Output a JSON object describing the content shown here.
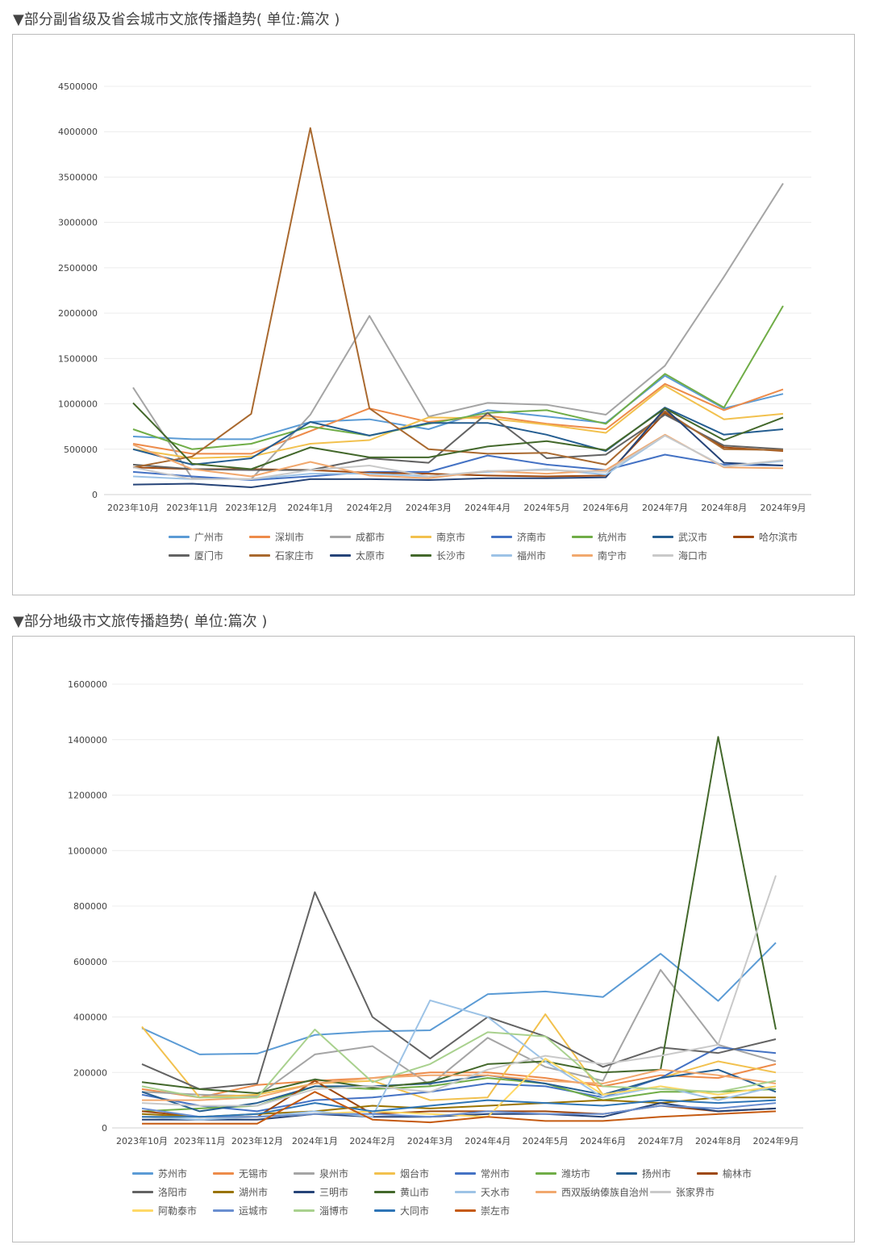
{
  "chart_data": [
    {
      "type": "line",
      "title": "▼部分副省级及省会城市文旅传播趋势( 单位:篇次 )",
      "categories": [
        "2023年10月",
        "2023年11月",
        "2023年12月",
        "2024年1月",
        "2024年2月",
        "2024年3月",
        "2024年4月",
        "2024年5月",
        "2024年6月",
        "2024年7月",
        "2024年8月",
        "2024年9月"
      ],
      "ylim": [
        0,
        4500000
      ],
      "yticks": [
        0,
        500000,
        1000000,
        1500000,
        2000000,
        2500000,
        3000000,
        3500000,
        4000000,
        4500000
      ],
      "grid": true,
      "legend": "bottom",
      "series": [
        {
          "name": "广州市",
          "color": "#5b9bd5",
          "values": [
            640000,
            610000,
            610000,
            800000,
            830000,
            720000,
            930000,
            860000,
            790000,
            1310000,
            950000,
            1110000
          ]
        },
        {
          "name": "深圳市",
          "color": "#ed8b4a",
          "values": [
            560000,
            450000,
            450000,
            700000,
            950000,
            800000,
            870000,
            780000,
            720000,
            1220000,
            930000,
            1160000
          ]
        },
        {
          "name": "成都市",
          "color": "#a5a5a5",
          "values": [
            1180000,
            180000,
            170000,
            880000,
            1970000,
            860000,
            1010000,
            990000,
            880000,
            1420000,
            2400000,
            3430000
          ]
        },
        {
          "name": "南京市",
          "color": "#f2c14e",
          "values": [
            500000,
            400000,
            420000,
            560000,
            600000,
            850000,
            840000,
            770000,
            680000,
            1200000,
            830000,
            890000
          ]
        },
        {
          "name": "济南市",
          "color": "#4472c4",
          "values": [
            250000,
            200000,
            160000,
            200000,
            250000,
            250000,
            430000,
            330000,
            270000,
            440000,
            330000,
            320000
          ]
        },
        {
          "name": "杭州市",
          "color": "#70ad47",
          "values": [
            720000,
            500000,
            560000,
            750000,
            650000,
            780000,
            900000,
            930000,
            780000,
            1330000,
            960000,
            2080000
          ]
        },
        {
          "name": "武汉市",
          "color": "#255e91",
          "values": [
            500000,
            330000,
            400000,
            800000,
            650000,
            790000,
            790000,
            660000,
            480000,
            960000,
            660000,
            720000
          ]
        },
        {
          "name": "哈尔滨市",
          "color": "#9e480e",
          "values": [
            300000,
            280000,
            280000,
            270000,
            240000,
            230000,
            210000,
            200000,
            210000,
            900000,
            520000,
            480000
          ]
        },
        {
          "name": "厦门市",
          "color": "#636363",
          "values": [
            330000,
            280000,
            270000,
            270000,
            400000,
            350000,
            900000,
            400000,
            440000,
            880000,
            540000,
            500000
          ]
        },
        {
          "name": "石家庄市",
          "color": "#a9692f",
          "values": [
            300000,
            420000,
            890000,
            4040000,
            950000,
            500000,
            450000,
            460000,
            330000,
            920000,
            500000,
            490000
          ]
        },
        {
          "name": "太原市",
          "color": "#264478",
          "values": [
            110000,
            120000,
            80000,
            170000,
            170000,
            160000,
            180000,
            180000,
            190000,
            950000,
            350000,
            320000
          ]
        },
        {
          "name": "长沙市",
          "color": "#43682b",
          "values": [
            1010000,
            340000,
            280000,
            520000,
            410000,
            410000,
            530000,
            590000,
            490000,
            950000,
            600000,
            850000
          ]
        },
        {
          "name": "福州市",
          "color": "#9dc3e6",
          "values": [
            200000,
            170000,
            170000,
            230000,
            230000,
            200000,
            250000,
            280000,
            220000,
            650000,
            310000,
            370000
          ]
        },
        {
          "name": "南宁市",
          "color": "#f1a86e",
          "values": [
            550000,
            280000,
            200000,
            360000,
            210000,
            180000,
            260000,
            230000,
            270000,
            660000,
            300000,
            290000
          ]
        },
        {
          "name": "海口市",
          "color": "#c9c9c9",
          "values": [
            300000,
            170000,
            170000,
            270000,
            320000,
            200000,
            260000,
            270000,
            250000,
            650000,
            310000,
            380000
          ]
        }
      ]
    },
    {
      "type": "line",
      "title": "▼部分地级市文旅传播趋势( 单位:篇次 )",
      "categories": [
        "2023年10月",
        "2023年11月",
        "2023年12月",
        "2024年1月",
        "2024年2月",
        "2024年3月",
        "2024年4月",
        "2024年5月",
        "2024年6月",
        "2024年7月",
        "2024年8月",
        "2024年9月"
      ],
      "ylim": [
        0,
        1600000
      ],
      "yticks": [
        0,
        200000,
        400000,
        600000,
        800000,
        1000000,
        1200000,
        1400000,
        1600000
      ],
      "grid": true,
      "legend": "bottom",
      "series": [
        {
          "name": "苏州市",
          "color": "#5b9bd5",
          "values": [
            360000,
            265000,
            268000,
            335000,
            348000,
            352000,
            482000,
            492000,
            472000,
            628000,
            458000,
            668000
          ]
        },
        {
          "name": "无锡市",
          "color": "#ed8b4a",
          "values": [
            140000,
            110000,
            155000,
            170000,
            180000,
            200000,
            200000,
            180000,
            150000,
            190000,
            180000,
            230000
          ]
        },
        {
          "name": "泉州市",
          "color": "#a5a5a5",
          "values": [
            130000,
            120000,
            115000,
            265000,
            295000,
            155000,
            325000,
            220000,
            170000,
            570000,
            300000,
            240000
          ]
        },
        {
          "name": "烟台市",
          "color": "#f2c14e",
          "values": [
            365000,
            110000,
            120000,
            160000,
            170000,
            100000,
            110000,
            410000,
            120000,
            180000,
            240000,
            200000
          ]
        },
        {
          "name": "常州市",
          "color": "#4472c4",
          "values": [
            120000,
            80000,
            60000,
            100000,
            110000,
            130000,
            160000,
            150000,
            110000,
            180000,
            290000,
            270000
          ]
        },
        {
          "name": "潍坊市",
          "color": "#70ad47",
          "values": [
            60000,
            70000,
            80000,
            150000,
            140000,
            150000,
            180000,
            160000,
            100000,
            130000,
            130000,
            140000
          ]
        },
        {
          "name": "扬州市",
          "color": "#255e91",
          "values": [
            130000,
            60000,
            90000,
            150000,
            150000,
            160000,
            190000,
            160000,
            120000,
            180000,
            210000,
            130000
          ]
        },
        {
          "name": "榆林市",
          "color": "#9e480e",
          "values": [
            60000,
            40000,
            40000,
            170000,
            50000,
            60000,
            60000,
            60000,
            50000,
            80000,
            60000,
            70000
          ]
        },
        {
          "name": "洛阳市",
          "color": "#636363",
          "values": [
            230000,
            140000,
            160000,
            850000,
            400000,
            250000,
            400000,
            330000,
            220000,
            290000,
            270000,
            320000
          ]
        },
        {
          "name": "湖州市",
          "color": "#997300",
          "values": [
            50000,
            40000,
            50000,
            60000,
            80000,
            70000,
            80000,
            90000,
            100000,
            90000,
            110000,
            110000
          ]
        },
        {
          "name": "三明市",
          "color": "#264478",
          "values": [
            30000,
            30000,
            30000,
            50000,
            40000,
            40000,
            50000,
            50000,
            40000,
            90000,
            60000,
            70000
          ]
        },
        {
          "name": "黄山市",
          "color": "#43682b",
          "values": [
            165000,
            140000,
            125000,
            175000,
            145000,
            165000,
            230000,
            240000,
            200000,
            210000,
            1410000,
            355000
          ]
        },
        {
          "name": "天水市",
          "color": "#9dc3e6",
          "values": [
            40000,
            30000,
            40000,
            60000,
            40000,
            460000,
            400000,
            240000,
            110000,
            150000,
            100000,
            150000
          ]
        },
        {
          "name": "西双版纳傣族自治州",
          "color": "#f1a86e",
          "values": [
            100000,
            100000,
            110000,
            160000,
            180000,
            190000,
            190000,
            170000,
            160000,
            210000,
            190000,
            160000
          ]
        },
        {
          "name": "张家界市",
          "color": "#c9c9c9",
          "values": [
            90000,
            80000,
            80000,
            140000,
            150000,
            130000,
            210000,
            260000,
            230000,
            260000,
            300000,
            910000
          ]
        },
        {
          "name": "阿勒泰市",
          "color": "#ffd966",
          "values": [
            40000,
            40000,
            40000,
            50000,
            60000,
            50000,
            40000,
            250000,
            120000,
            150000,
            120000,
            150000
          ]
        },
        {
          "name": "运城市",
          "color": "#698ed0",
          "values": [
            70000,
            40000,
            40000,
            50000,
            50000,
            40000,
            60000,
            50000,
            50000,
            80000,
            70000,
            90000
          ]
        },
        {
          "name": "淄博市",
          "color": "#a9d18e",
          "values": [
            150000,
            110000,
            110000,
            355000,
            165000,
            230000,
            345000,
            330000,
            150000,
            140000,
            130000,
            170000
          ]
        },
        {
          "name": "大同市",
          "color": "#2e75b6",
          "values": [
            40000,
            40000,
            50000,
            90000,
            60000,
            80000,
            100000,
            90000,
            80000,
            100000,
            90000,
            100000
          ]
        },
        {
          "name": "崇左市",
          "color": "#c55a11",
          "values": [
            15000,
            15000,
            15000,
            130000,
            30000,
            20000,
            40000,
            25000,
            25000,
            40000,
            50000,
            60000
          ]
        }
      ]
    }
  ]
}
